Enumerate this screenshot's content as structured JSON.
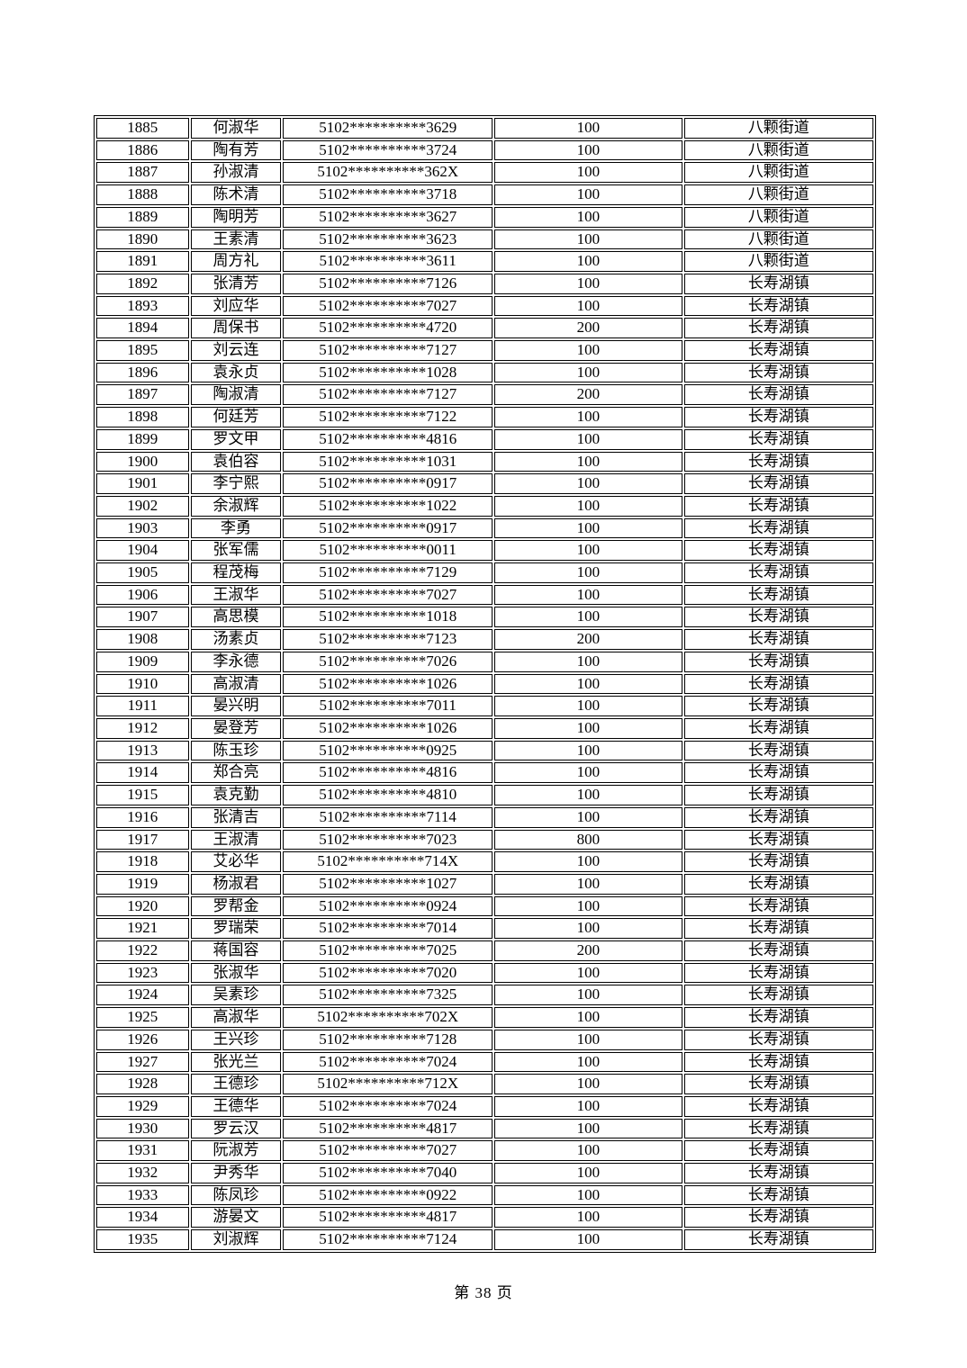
{
  "page": {
    "footer": "第 38 页"
  },
  "table": {
    "rows": [
      [
        "1885",
        "何淑华",
        "5102**********3629",
        "100",
        "八颗街道"
      ],
      [
        "1886",
        "陶有芳",
        "5102**********3724",
        "100",
        "八颗街道"
      ],
      [
        "1887",
        "孙淑清",
        "5102**********362X",
        "100",
        "八颗街道"
      ],
      [
        "1888",
        "陈术清",
        "5102**********3718",
        "100",
        "八颗街道"
      ],
      [
        "1889",
        "陶明芳",
        "5102**********3627",
        "100",
        "八颗街道"
      ],
      [
        "1890",
        "王素清",
        "5102**********3623",
        "100",
        "八颗街道"
      ],
      [
        "1891",
        "周方礼",
        "5102**********3611",
        "100",
        "八颗街道"
      ],
      [
        "1892",
        "张清芳",
        "5102**********7126",
        "100",
        "长寿湖镇"
      ],
      [
        "1893",
        "刘应华",
        "5102**********7027",
        "100",
        "长寿湖镇"
      ],
      [
        "1894",
        "周保书",
        "5102**********4720",
        "200",
        "长寿湖镇"
      ],
      [
        "1895",
        "刘云连",
        "5102**********7127",
        "100",
        "长寿湖镇"
      ],
      [
        "1896",
        "袁永贞",
        "5102**********1028",
        "100",
        "长寿湖镇"
      ],
      [
        "1897",
        "陶淑清",
        "5102**********7127",
        "200",
        "长寿湖镇"
      ],
      [
        "1898",
        "何廷芳",
        "5102**********7122",
        "100",
        "长寿湖镇"
      ],
      [
        "1899",
        "罗文甲",
        "5102**********4816",
        "100",
        "长寿湖镇"
      ],
      [
        "1900",
        "袁伯容",
        "5102**********1031",
        "100",
        "长寿湖镇"
      ],
      [
        "1901",
        "李宁熙",
        "5102**********0917",
        "100",
        "长寿湖镇"
      ],
      [
        "1902",
        "余淑辉",
        "5102**********1022",
        "100",
        "长寿湖镇"
      ],
      [
        "1903",
        "李勇",
        "5102**********0917",
        "100",
        "长寿湖镇"
      ],
      [
        "1904",
        "张军儒",
        "5102**********0011",
        "100",
        "长寿湖镇"
      ],
      [
        "1905",
        "程茂梅",
        "5102**********7129",
        "100",
        "长寿湖镇"
      ],
      [
        "1906",
        "王淑华",
        "5102**********7027",
        "100",
        "长寿湖镇"
      ],
      [
        "1907",
        "高思模",
        "5102**********1018",
        "100",
        "长寿湖镇"
      ],
      [
        "1908",
        "汤素贞",
        "5102**********7123",
        "200",
        "长寿湖镇"
      ],
      [
        "1909",
        "李永德",
        "5102**********7026",
        "100",
        "长寿湖镇"
      ],
      [
        "1910",
        "高淑清",
        "5102**********1026",
        "100",
        "长寿湖镇"
      ],
      [
        "1911",
        "晏兴明",
        "5102**********7011",
        "100",
        "长寿湖镇"
      ],
      [
        "1912",
        "晏登芳",
        "5102**********1026",
        "100",
        "长寿湖镇"
      ],
      [
        "1913",
        "陈玉珍",
        "5102**********0925",
        "100",
        "长寿湖镇"
      ],
      [
        "1914",
        "郑合亮",
        "5102**********4816",
        "100",
        "长寿湖镇"
      ],
      [
        "1915",
        "袁克勤",
        "5102**********4810",
        "100",
        "长寿湖镇"
      ],
      [
        "1916",
        "张清吉",
        "5102**********7114",
        "100",
        "长寿湖镇"
      ],
      [
        "1917",
        "王淑清",
        "5102**********7023",
        "800",
        "长寿湖镇"
      ],
      [
        "1918",
        "艾必华",
        "5102**********714X",
        "100",
        "长寿湖镇"
      ],
      [
        "1919",
        "杨淑君",
        "5102**********1027",
        "100",
        "长寿湖镇"
      ],
      [
        "1920",
        "罗帮金",
        "5102**********0924",
        "100",
        "长寿湖镇"
      ],
      [
        "1921",
        "罗瑞荣",
        "5102**********7014",
        "100",
        "长寿湖镇"
      ],
      [
        "1922",
        "蒋国容",
        "5102**********7025",
        "200",
        "长寿湖镇"
      ],
      [
        "1923",
        "张淑华",
        "5102**********7020",
        "100",
        "长寿湖镇"
      ],
      [
        "1924",
        "吴素珍",
        "5102**********7325",
        "100",
        "长寿湖镇"
      ],
      [
        "1925",
        "高淑华",
        "5102**********702X",
        "100",
        "长寿湖镇"
      ],
      [
        "1926",
        "王兴珍",
        "5102**********7128",
        "100",
        "长寿湖镇"
      ],
      [
        "1927",
        "张光兰",
        "5102**********7024",
        "100",
        "长寿湖镇"
      ],
      [
        "1928",
        "王德珍",
        "5102**********712X",
        "100",
        "长寿湖镇"
      ],
      [
        "1929",
        "王德华",
        "5102**********7024",
        "100",
        "长寿湖镇"
      ],
      [
        "1930",
        "罗云汉",
        "5102**********4817",
        "100",
        "长寿湖镇"
      ],
      [
        "1931",
        "阮淑芳",
        "5102**********7027",
        "100",
        "长寿湖镇"
      ],
      [
        "1932",
        "尹秀华",
        "5102**********7040",
        "100",
        "长寿湖镇"
      ],
      [
        "1933",
        "陈凤珍",
        "5102**********0922",
        "100",
        "长寿湖镇"
      ],
      [
        "1934",
        "游晏文",
        "5102**********4817",
        "100",
        "长寿湖镇"
      ],
      [
        "1935",
        "刘淑辉",
        "5102**********7124",
        "100",
        "长寿湖镇"
      ]
    ]
  }
}
